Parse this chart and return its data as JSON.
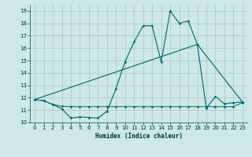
{
  "xlabel": "Humidex (Indice chaleur)",
  "bg_color": "#cde8e8",
  "grid_color": "#aacccc",
  "line_color": "#006666",
  "xlim": [
    -0.5,
    23.5
  ],
  "ylim": [
    10,
    19.5
  ],
  "yticks": [
    10,
    11,
    12,
    13,
    14,
    15,
    16,
    17,
    18,
    19
  ],
  "xticks": [
    0,
    1,
    2,
    3,
    4,
    5,
    6,
    7,
    8,
    9,
    10,
    11,
    12,
    13,
    14,
    15,
    16,
    17,
    18,
    19,
    20,
    21,
    22,
    23
  ],
  "spiky_x": [
    0,
    1,
    2,
    3,
    4,
    5,
    6,
    7,
    8,
    9,
    10,
    11,
    12,
    13,
    14,
    15,
    16,
    17,
    18,
    19,
    20,
    21,
    22,
    23
  ],
  "spiky_y": [
    11.85,
    11.75,
    11.45,
    11.1,
    10.35,
    10.45,
    10.4,
    10.35,
    10.9,
    12.75,
    14.9,
    16.5,
    17.8,
    17.8,
    14.9,
    19.0,
    18.0,
    18.2,
    16.3,
    11.15,
    12.1,
    11.5,
    11.6,
    11.65
  ],
  "trend_x": [
    0,
    18,
    23
  ],
  "trend_y": [
    11.85,
    16.3,
    11.65
  ],
  "flat_x": [
    0,
    1,
    2,
    3,
    4,
    5,
    6,
    7,
    8,
    9,
    10,
    11,
    12,
    13,
    14,
    15,
    16,
    17,
    18,
    19,
    20,
    21,
    22,
    23
  ],
  "flat_y": [
    11.85,
    11.75,
    11.45,
    11.3,
    11.28,
    11.28,
    11.28,
    11.28,
    11.28,
    11.28,
    11.28,
    11.28,
    11.28,
    11.28,
    11.28,
    11.28,
    11.28,
    11.28,
    11.28,
    11.28,
    11.28,
    11.28,
    11.28,
    11.6
  ]
}
